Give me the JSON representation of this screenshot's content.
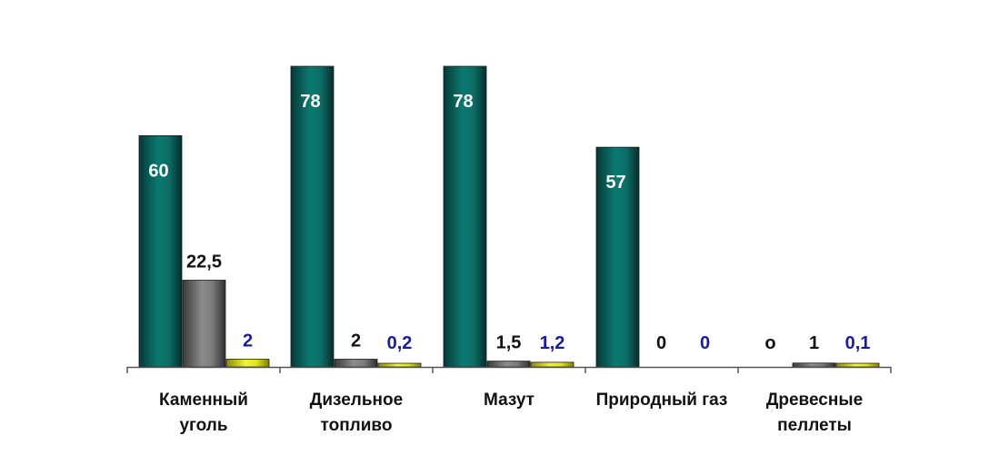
{
  "chart_data": {
    "type": "bar",
    "categories": [
      [
        "Каменный",
        "уголь"
      ],
      [
        "Дизельное",
        "топливо"
      ],
      [
        "Мазут"
      ],
      [
        "Природный газ"
      ],
      [
        "Древесные",
        "пеллеты"
      ]
    ],
    "series": [
      {
        "values": [
          60,
          78,
          78,
          57,
          0
        ],
        "labels": [
          "60",
          "78",
          "78",
          "57",
          "o"
        ],
        "color": "#0b6e66"
      },
      {
        "values": [
          22.5,
          2,
          1.5,
          0,
          1
        ],
        "labels": [
          "22,5",
          "2",
          "1,5",
          "0",
          "1"
        ],
        "color": "#7a7a7a"
      },
      {
        "values": [
          2,
          0.2,
          1.2,
          0,
          0.1
        ],
        "labels": [
          "2",
          "0,2",
          "1,2",
          "0",
          "0,1"
        ],
        "color": "#e4ea1e"
      }
    ],
    "label_colors": [
      "#ffffff",
      "#111111",
      "#1a1aa6"
    ],
    "ylim": [
      0,
      78
    ],
    "grid": false,
    "legend": "none"
  }
}
